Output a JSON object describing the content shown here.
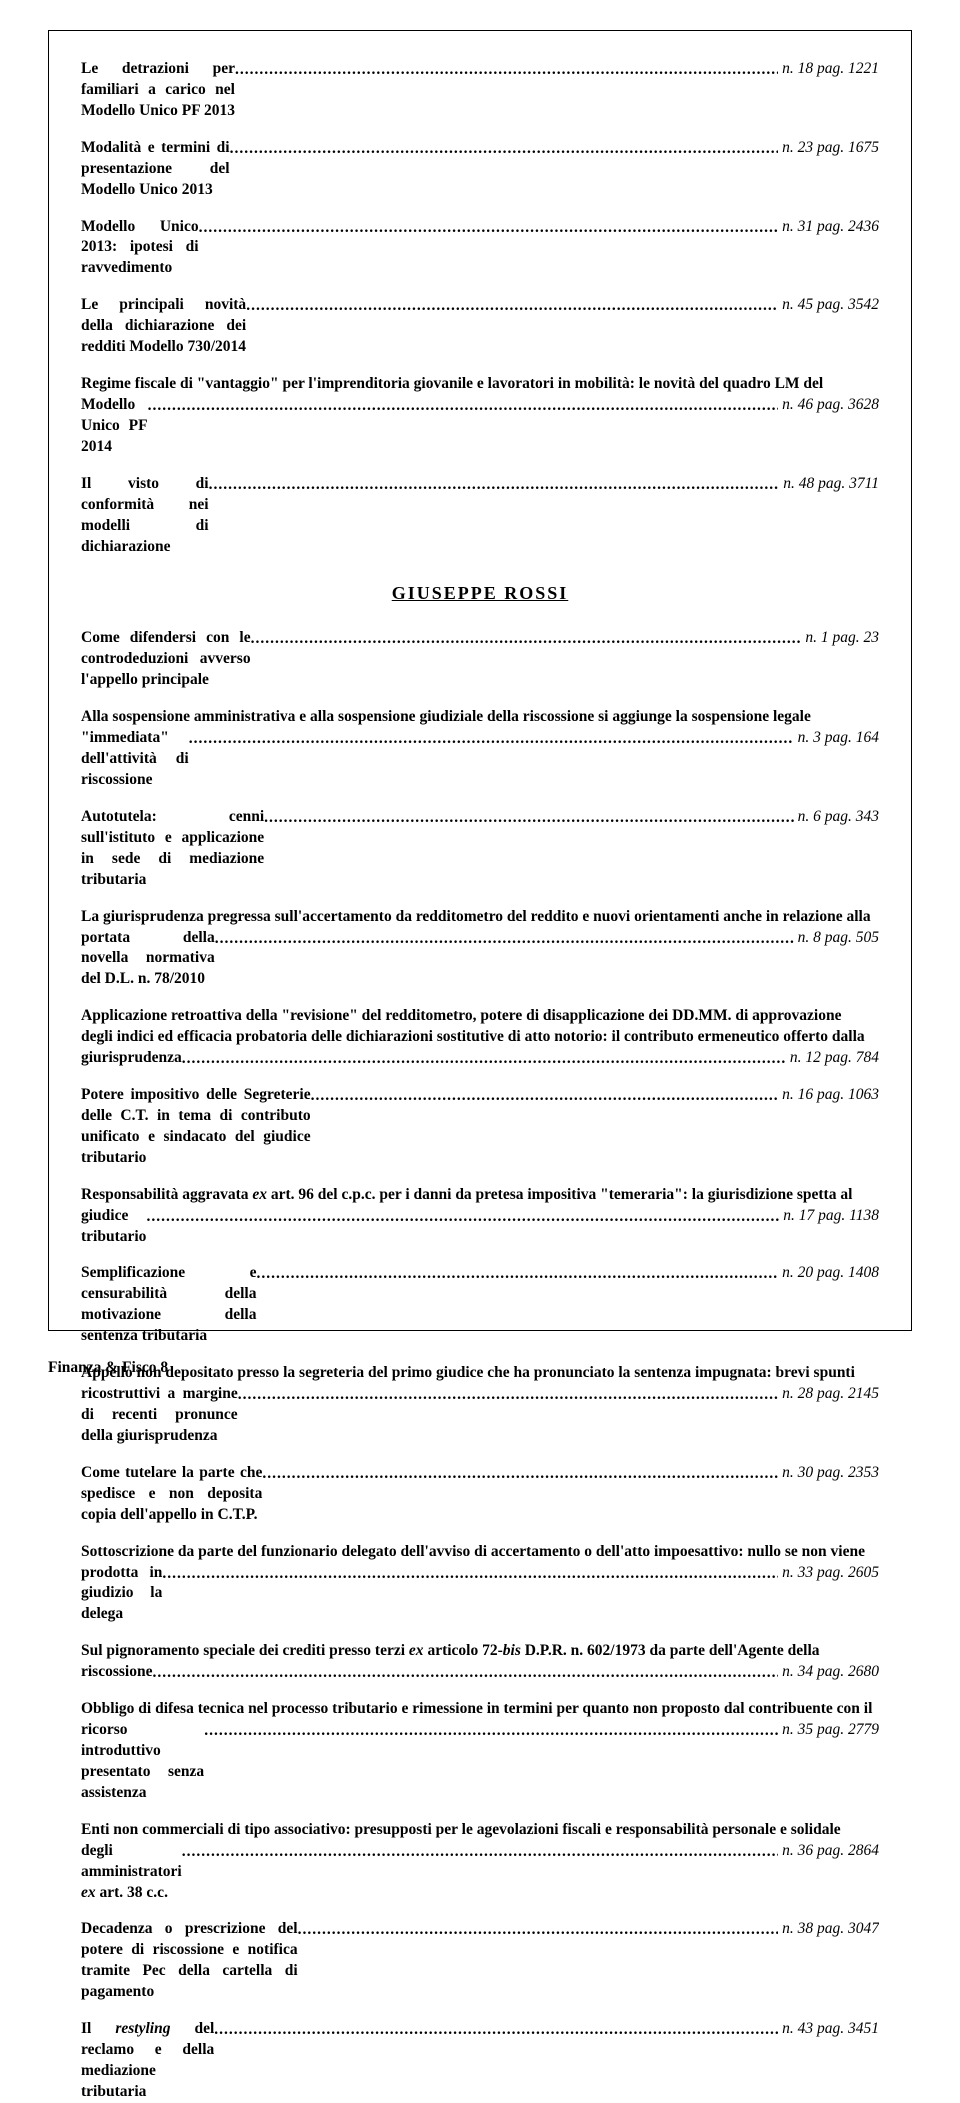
{
  "section1": [
    {
      "text": "Le detrazioni per familiari a carico nel Modello Unico PF 2013",
      "ref": "n. 18 pag. 1221"
    },
    {
      "text": "Modalità e termini di presentazione del Modello Unico 2013",
      "ref": "n. 23 pag. 1675"
    },
    {
      "text": "Modello Unico 2013: ipotesi di ravvedimento",
      "ref": "n. 31 pag. 2436"
    },
    {
      "text": "Le principali novità della dichiarazione dei redditi Modello 730/2014",
      "ref": "n. 45 pag. 3542"
    },
    {
      "text": "Regime fiscale di \"vantaggio\" per l'imprenditoria giovanile e lavoratori in mobilità: le novità del quadro LM del Modello Unico PF 2014",
      "ref": "n. 46 pag. 3628"
    },
    {
      "text": "Il visto di conformità nei modelli di dichiarazione",
      "ref": "n. 48 pag. 3711"
    }
  ],
  "author": "GIUSEPPE  ROSSI",
  "section2": [
    {
      "text": "Come difendersi con le controdeduzioni avverso l'appello principale",
      "ref": "n. 1 pag. 23"
    },
    {
      "text": "Alla sospensione amministrativa e alla sospensione giudiziale della riscossione si aggiunge la sospensione legale \"immediata\" dell'attività di riscossione",
      "ref": "n. 3 pag. 164"
    },
    {
      "text": "Autotutela: cenni sull'istituto e applicazione in sede di mediazione tributaria",
      "ref": "n. 6 pag. 343"
    },
    {
      "text": "La giurisprudenza pregressa sull'accertamento da redditometro del reddito e nuovi orientamenti anche in relazione alla portata della novella normativa del D.L. n. 78/2010",
      "ref": "n. 8 pag. 505"
    },
    {
      "text": "Applicazione retroattiva della \"revisione\" del redditometro, potere di disapplicazione dei DD.MM. di approvazione degli indici ed efficacia probatoria delle dichiarazioni sostitutive di atto notorio: il contributo ermeneutico offerto dalla giurisprudenza",
      "ref": "n. 12 pag. 784"
    },
    {
      "text": "Potere impositivo delle Segreterie delle C.T. in tema di contributo unificato e sindacato del giudice tributario",
      "ref": "n. 16 pag. 1063"
    },
    {
      "text_html": "Responsabilità aggravata <em class='i'>ex</em> art. 96 del c.p.c. per i danni da pretesa impositiva \"temeraria\": la giurisdizione spetta al giudice tributario",
      "ref": "n. 17 pag. 1138"
    },
    {
      "text": "Semplificazione e censurabilità della motivazione della sentenza tributaria",
      "ref": "n. 20 pag. 1408"
    },
    {
      "text": "Appello non depositato presso la segreteria del primo giudice che ha pronunciato la sentenza impugnata: brevi spunti ricostruttivi a margine di recenti pronunce della giurisprudenza",
      "ref": "n. 28 pag. 2145"
    },
    {
      "text": "Come tutelare la parte che spedisce e non deposita copia dell'appello in C.T.P.",
      "ref": "n. 30 pag. 2353"
    },
    {
      "text": "Sottoscrizione da parte del funzionario delegato dell'avviso di accertamento o dell'atto impoesattivo: nullo se non viene prodotta in giudizio la delega",
      "ref": "n. 33 pag. 2605"
    },
    {
      "text_html": "Sul pignoramento speciale dei crediti presso terzi <em class='i'>ex</em> articolo 72-<em class='i'>bis</em> D.P.R. n. 602/1973 da parte dell'Agente della riscossione",
      "ref": "n. 34 pag. 2680"
    },
    {
      "text": "Obbligo di difesa tecnica nel processo tributario e rimessione in termini per quanto non proposto dal contribuente con il ricorso introduttivo presentato senza assistenza",
      "ref": "n. 35 pag. 2779"
    },
    {
      "text_html": "Enti non commerciali di tipo associativo: presupposti per le agevolazioni fiscali e responsabilità personale e solidale degli amministratori <em class='i'>ex</em> art. 38 c.c.",
      "ref": "n. 36 pag. 2864"
    },
    {
      "text": "Decadenza o prescrizione del potere di riscossione e notifica tramite Pec della cartella di pagamento",
      "ref": "n. 38 pag. 3047"
    },
    {
      "text_html": "Il <em class='i'>restyling</em> del reclamo e della mediazione tributaria",
      "ref": "n. 43 pag. 3451"
    }
  ],
  "footer": "Finanza & Fisco 8"
}
